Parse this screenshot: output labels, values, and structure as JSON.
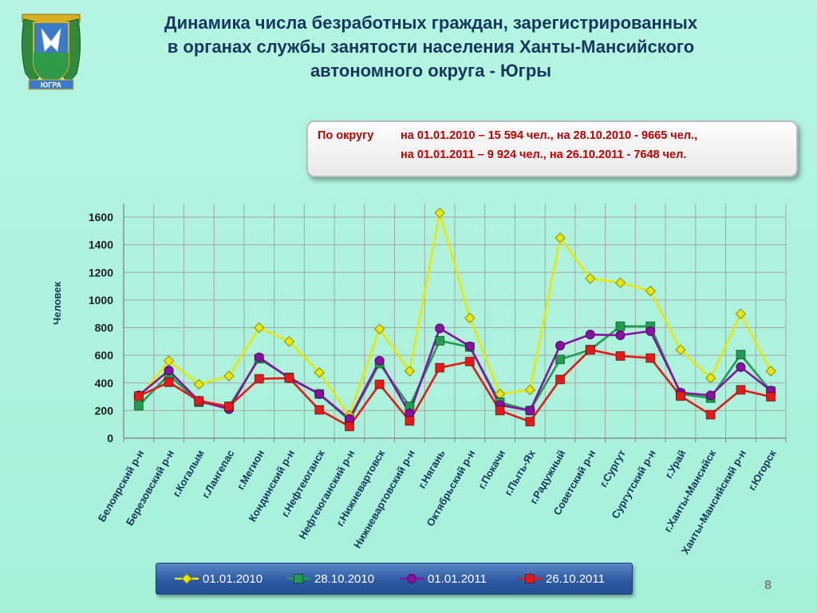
{
  "title": {
    "line1": "Динамика числа безработных граждан, зарегистрированных",
    "line2": "в органах службы занятости населения Ханты-Мансийского",
    "line3": "автономного округа - Югры"
  },
  "crest": {
    "text": "ЮГРА"
  },
  "info_box": {
    "label": "По округу",
    "line1": "на 01.01.2010 – 15 594 чел., на 28.10.2010 -   9665 чел.,",
    "line2": "на 01.01.2011 – 9 924 чел., на 26.10.2011 -  7648 чел."
  },
  "page_number": "8",
  "colors": {
    "series_2010": "#e8e800",
    "series_2010_10": "#1e9e4e",
    "series_2011": "#8b0fa5",
    "series_2011_10": "#e81818",
    "title": "#17375e",
    "info_text": "#c00000"
  },
  "chart_data": {
    "type": "line",
    "ylabel": "Человек",
    "xlabel": "",
    "ylim": [
      0,
      1600
    ],
    "yticks": [
      "0",
      "200",
      "400",
      "600",
      "800",
      "1000",
      "1200",
      "1400",
      "1600"
    ],
    "grid": true,
    "legend_position": "bottom",
    "categories": [
      "Белоярский р-н",
      "Березовский р-н",
      "г.Когалым",
      "г.Лангепас",
      "г.Мегион",
      "Кондинский р-н",
      "г.Нефтеюганск",
      "Нефтеюганский р-н",
      "г.Нижневартовск",
      "Нижневартовский р-н",
      "г.Нягань",
      "Октябрьский р-н",
      "г.Покачи",
      "г.Пыть-Ях",
      "г.Радужный",
      "Советский р-н",
      "г.Сургут",
      "Сургутский р-н",
      "г.Урай",
      "г.Ханты-Мансийск",
      "Ханты-Мансийский р-н",
      "г.Югорск"
    ],
    "series": [
      {
        "name": "01.01.2010",
        "marker": "diamond",
        "values": [
          290,
          560,
          390,
          450,
          800,
          700,
          475,
          165,
          790,
          485,
          1630,
          870,
          320,
          350,
          1450,
          1155,
          1125,
          1065,
          640,
          435,
          900,
          485
        ]
      },
      {
        "name": "28.10.2010",
        "marker": "square",
        "values": [
          235,
          460,
          260,
          230,
          575,
          440,
          320,
          130,
          540,
          230,
          705,
          660,
          260,
          200,
          570,
          640,
          810,
          810,
          320,
          290,
          605,
          340
        ]
      },
      {
        "name": "01.01.2011",
        "marker": "circle",
        "values": [
          310,
          490,
          270,
          210,
          585,
          435,
          320,
          140,
          560,
          180,
          795,
          665,
          240,
          200,
          670,
          750,
          745,
          775,
          330,
          310,
          515,
          345
        ]
      },
      {
        "name": "26.10.2011",
        "marker": "square",
        "values": [
          305,
          405,
          270,
          230,
          430,
          435,
          205,
          85,
          390,
          125,
          510,
          555,
          200,
          120,
          425,
          640,
          595,
          580,
          305,
          170,
          350,
          300
        ]
      }
    ]
  }
}
